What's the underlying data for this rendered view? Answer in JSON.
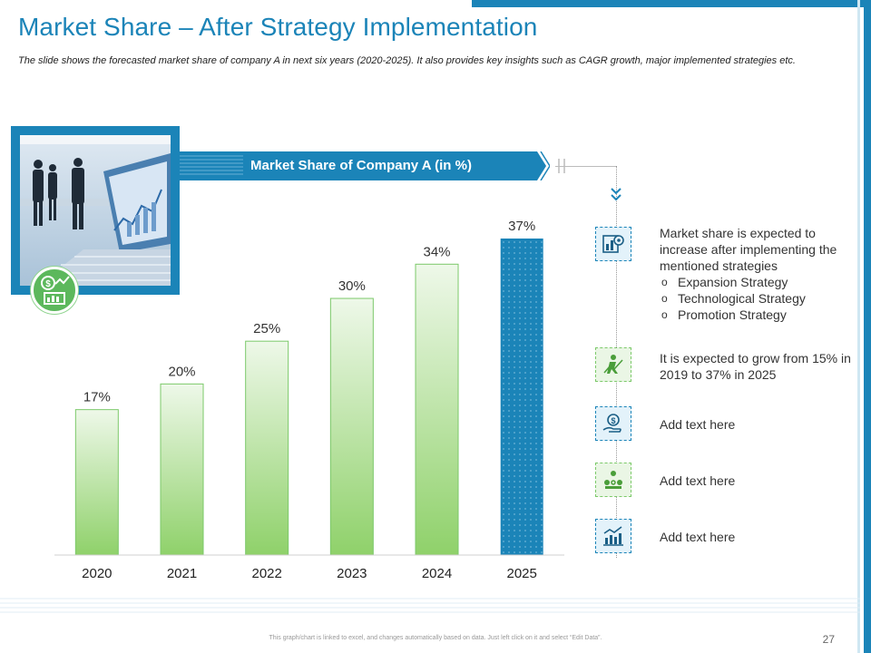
{
  "title": "Market Share – After Strategy Implementation",
  "subtitle": "The slide shows the forecasted market share of company A in next six years (2020-2025). It also provides key insights such as CAGR growth, major implemented strategies etc.",
  "colors": {
    "accent": "#1b84b8",
    "green": "#7cc96a",
    "bar_light": "#e8f5e1",
    "bar_dark": "#8fd16a"
  },
  "chart_data": {
    "type": "bar",
    "title": "Market Share of Company A (in %)",
    "categories": [
      "2020",
      "2021",
      "2022",
      "2023",
      "2024",
      "2025"
    ],
    "values": [
      17,
      20,
      25,
      30,
      34,
      37
    ],
    "labels": [
      "17%",
      "20%",
      "25%",
      "30%",
      "34%",
      "37%"
    ],
    "highlight_index": 5,
    "ylim": [
      0,
      37
    ],
    "xlabel": "",
    "ylabel": ""
  },
  "insights": {
    "intro": "Market share is expected to increase after implementing the mentioned strategies",
    "strategies": [
      "Expansion Strategy",
      "Technological Strategy",
      "Promotion Strategy"
    ],
    "growth": "It is expected to grow from 15% in 2019 to 37% in 2025",
    "placeholder1": "Add text here",
    "placeholder2": "Add text here",
    "placeholder3": "Add text here",
    "icons": [
      "chart-gear-icon",
      "growth-person-icon",
      "dollar-hand-icon",
      "team-icon",
      "growth-chart-icon"
    ]
  },
  "footer": {
    "note": "This graph/chart is linked to excel, and changes automatically based on data. Just left click on it and select “Edit Data”.",
    "page": "27"
  }
}
